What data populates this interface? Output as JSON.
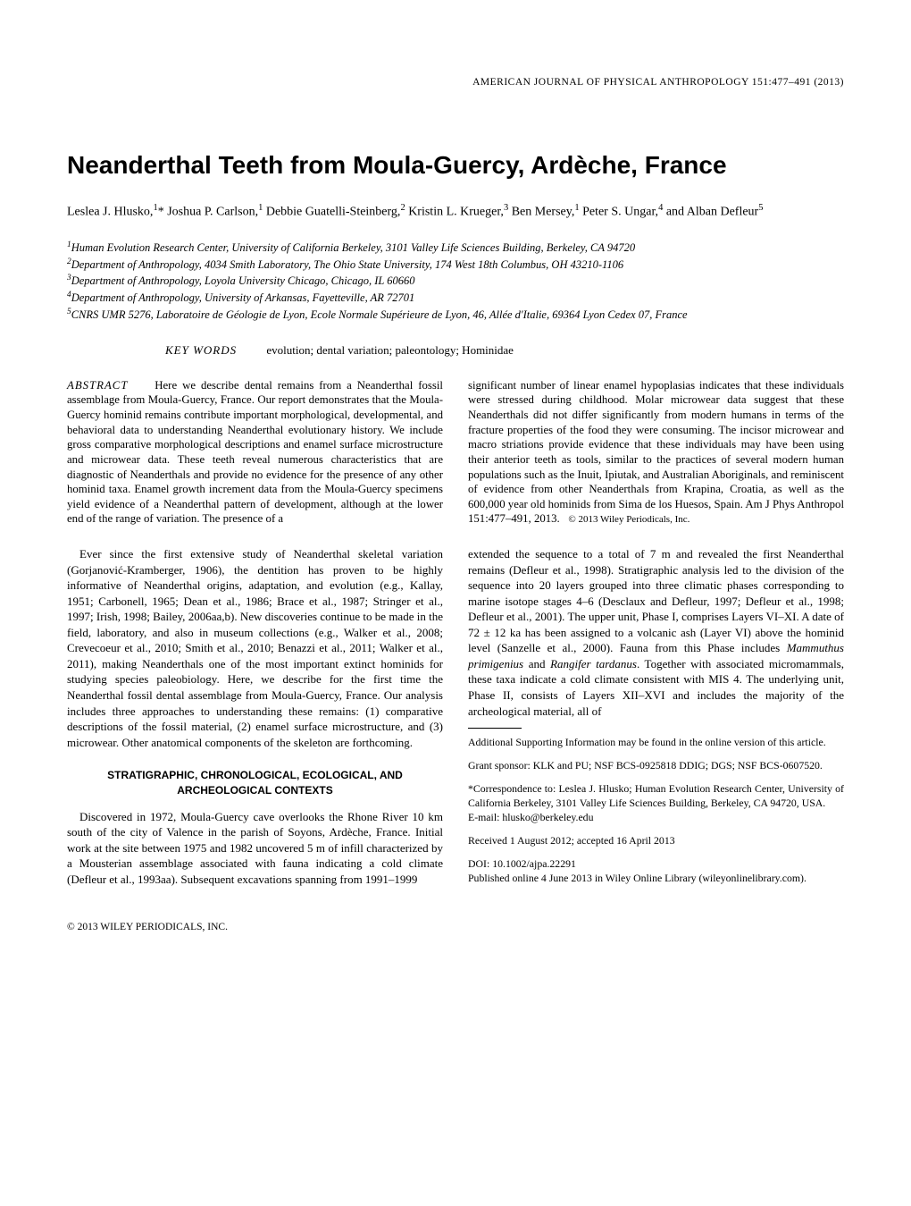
{
  "journal_header": "AMERICAN JOURNAL OF PHYSICAL ANTHROPOLOGY 151:477–491 (2013)",
  "title": "Neanderthal Teeth from Moula-Guercy, Ardèche, France",
  "authors_html": "Leslea J. Hlusko,<sup>1</sup>* Joshua P. Carlson,<sup>1</sup> Debbie Guatelli-Steinberg,<sup>2</sup> Kristin L. Krueger,<sup>3</sup> Ben Mersey,<sup>1</sup> Peter S. Ungar,<sup>4</sup> and Alban Defleur<sup>5</sup>",
  "affiliations": [
    "<sup>1</sup>Human Evolution Research Center, University of California Berkeley, 3101 Valley Life Sciences Building, Berkeley, CA 94720",
    "<sup>2</sup>Department of Anthropology, 4034 Smith Laboratory, The Ohio State University, 174 West 18th Columbus, OH 43210-1106",
    "<sup>3</sup>Department of Anthropology, Loyola University Chicago, Chicago, IL 60660",
    "<sup>4</sup>Department of Anthropology, University of Arkansas, Fayetteville, AR 72701",
    "<sup>5</sup>CNRS UMR 5276, Laboratoire de Géologie de Lyon, Ecole Normale Supérieure de Lyon, 46, Allée d'Italie, 69364 Lyon Cedex 07, France"
  ],
  "keywords_label": "KEY WORDS",
  "keywords": "evolution; dental variation; paleontology; Hominidae",
  "abstract_label": "ABSTRACT",
  "abstract_left": "Here we describe dental remains from a Neanderthal fossil assemblage from Moula-Guercy, France. Our report demonstrates that the Moula-Guercy hominid remains contribute important morphological, developmental, and behavioral data to understanding Neanderthal evolutionary history. We include gross comparative morphological descriptions and enamel surface microstructure and microwear data. These teeth reveal numerous characteristics that are diagnostic of Neanderthals and provide no evidence for the presence of any other hominid taxa. Enamel growth increment data from the Moula-Guercy specimens yield evidence of a Neanderthal pattern of development, although at the lower end of the range of variation. The presence of a",
  "abstract_right": "significant number of linear enamel hypoplasias indicates that these individuals were stressed during childhood. Molar microwear data suggest that these Neanderthals did not differ significantly from modern humans in terms of the fracture properties of the food they were consuming. The incisor microwear and macro striations provide evidence that these individuals may have been using their anterior teeth as tools, similar to the practices of several modern human populations such as the Inuit, Ipiutak, and Australian Aboriginals, and reminiscent of evidence from other Neanderthals from Krapina, Croatia, as well as the 600,000 year old hominids from Sima de los Huesos, Spain. Am J Phys Anthropol 151:477–491, 2013.",
  "copyright_inline": "© 2013 Wiley Periodicals, Inc.",
  "body_left_p1": "Ever since the first extensive study of Neanderthal skeletal variation (Gorjanović-Kramberger, 1906), the dentition has proven to be highly informative of Neanderthal origins, adaptation, and evolution (e.g., Kallay, 1951; Carbonell, 1965; Dean et al., 1986; Brace et al., 1987; Stringer et al., 1997; Irish, 1998; Bailey, 2006aa,b). New discoveries continue to be made in the field, laboratory, and also in museum collections (e.g., Walker et al., 2008; Crevecoeur et al., 2010; Smith et al., 2010; Benazzi et al., 2011; Walker et al., 2011), making Neanderthals one of the most important extinct hominids for studying species paleobiology. Here, we describe for the first time the Neanderthal fossil dental assemblage from Moula-Guercy, France. Our analysis includes three approaches to understanding these remains: (1) comparative descriptions of the fossil material, (2) enamel surface microstructure, and (3) microwear. Other anatomical components of the skeleton are forthcoming.",
  "section_heading": "STRATIGRAPHIC, CHRONOLOGICAL, ECOLOGICAL, AND ARCHEOLOGICAL CONTEXTS",
  "body_left_p2": "Discovered in 1972, Moula-Guercy cave overlooks the Rhone River 10 km south of the city of Valence in the parish of Soyons, Ardèche, France. Initial work at the site between 1975 and 1982 uncovered 5 m of infill characterized by a Mousterian assemblage associated with fauna indicating a cold climate (Defleur et al., 1993aa). Subsequent excavations spanning from 1991–1999",
  "body_right_p1": "extended the sequence to a total of 7 m and revealed the first Neanderthal remains (Defleur et al., 1998). Stratigraphic analysis led to the division of the sequence into 20 layers grouped into three climatic phases corresponding to marine isotope stages 4–6 (Desclaux and Defleur, 1997; Defleur et al., 1998; Defleur et al., 2001). The upper unit, Phase I, comprises Layers VI–XI. A date of 72 ± 12 ka has been assigned to a volcanic ash (Layer VI) above the hominid level (Sanzelle et al., 2000). Fauna from this Phase includes <i>Mammuthus primigenius</i> and <i>Rangifer tardanus</i>. Together with associated micromammals, these taxa indicate a cold climate consistent with MIS 4. The underlying unit, Phase II, consists of Layers XII–XVI and includes the majority of the archeological material, all of",
  "footnotes": {
    "suppl": "Additional Supporting Information may be found in the online version of this article.",
    "grant": "Grant sponsor: KLK and PU; NSF BCS-0925818 DDIG; DGS; NSF BCS-0607520.",
    "corr": "*Correspondence to: Leslea J. Hlusko; Human Evolution Research Center, University of California Berkeley, 3101 Valley Life Sciences Building, Berkeley, CA 94720, USA.",
    "email": "E-mail: hlusko@berkeley.edu",
    "received": "Received 1 August 2012; accepted 16 April 2013",
    "doi": "DOI: 10.1002/ajpa.22291",
    "published": "Published online 4 June 2013 in Wiley Online Library (wileyonlinelibrary.com)."
  },
  "footer_copyright": "© 2013 WILEY PERIODICALS, INC."
}
